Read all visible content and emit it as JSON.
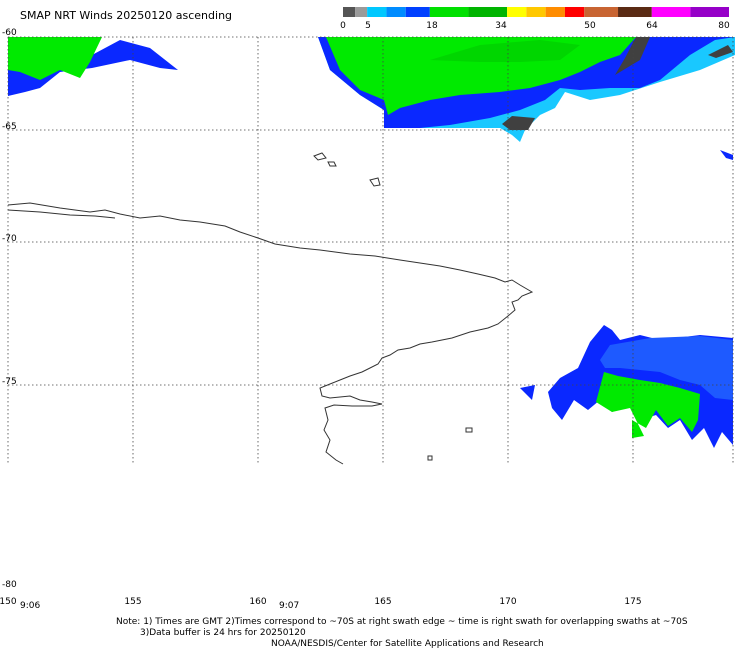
{
  "title": "SMAP NRT Winds 20250120 ascending",
  "colorbar": {
    "ticks": [
      "0",
      "5",
      "18",
      "34",
      "50",
      "64",
      "80"
    ],
    "segments": [
      {
        "from": 0,
        "to": 2.5,
        "color": "#555555"
      },
      {
        "from": 2.5,
        "to": 5,
        "color": "#9a9a9a"
      },
      {
        "from": 5,
        "to": 9,
        "color": "#00c8ff"
      },
      {
        "from": 9,
        "to": 13,
        "color": "#008cff"
      },
      {
        "from": 13,
        "to": 18,
        "color": "#0040ff"
      },
      {
        "from": 18,
        "to": 26,
        "color": "#00e000"
      },
      {
        "from": 26,
        "to": 34,
        "color": "#00b400"
      },
      {
        "from": 34,
        "to": 38,
        "color": "#ffff00"
      },
      {
        "from": 38,
        "to": 42,
        "color": "#ffc800"
      },
      {
        "from": 42,
        "to": 46,
        "color": "#ff8c00"
      },
      {
        "from": 46,
        "to": 50,
        "color": "#ff0000"
      },
      {
        "from": 50,
        "to": 57,
        "color": "#c86432"
      },
      {
        "from": 57,
        "to": 64,
        "color": "#5a2a14"
      },
      {
        "from": 64,
        "to": 72,
        "color": "#ff00ff"
      },
      {
        "from": 72,
        "to": 80,
        "color": "#9600c8"
      }
    ]
  },
  "map": {
    "lat_labels": [
      "-60",
      "-65",
      "-70",
      "-75",
      "-80"
    ],
    "lon_labels": [
      "150",
      "155",
      "160",
      "165",
      "170",
      "175"
    ],
    "time_labels": [
      "9:06",
      "9:07"
    ],
    "wind_colors": {
      "blue": "#0a28ff",
      "royal": "#1e5aff",
      "light_blue": "#19c8ff",
      "green": "#00ea00",
      "dark_green": "#00b400",
      "gray": "#404040"
    }
  },
  "notes": {
    "line1": "Note: 1) Times are GMT 2)Times correspond to ~70S at right swath edge ~ time is right swath for overlapping swaths at ~70S",
    "line2": "3)Data buffer is 24 hrs for 20250120",
    "line3": "NOAA/NESDIS/Center for Satellite Applications and Research"
  }
}
